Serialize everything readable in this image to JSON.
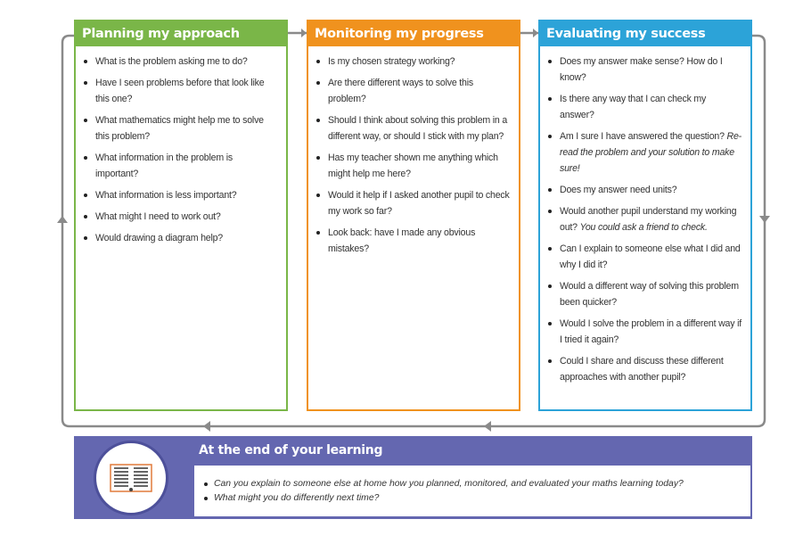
{
  "columns": [
    {
      "title": "Planning my approach",
      "color": "#7ab648",
      "items": [
        {
          "text": "What is the problem asking me to do?"
        },
        {
          "text": "Have I seen problems before that look like this one?"
        },
        {
          "text": "What mathematics might help me to solve this problem?"
        },
        {
          "text": "What information in the problem is important?"
        },
        {
          "text": "What information is less important?"
        },
        {
          "text": "What might I need to work out?"
        },
        {
          "text": "Would drawing a diagram help?"
        }
      ]
    },
    {
      "title": "Monitoring my progress",
      "color": "#f0921e",
      "items": [
        {
          "text": "Is my chosen strategy working?"
        },
        {
          "text": "Are there different ways to solve this problem?"
        },
        {
          "text": "Should I think about solving this problem in a different way, or should I stick with my plan?"
        },
        {
          "text": "Has my teacher shown me anything which might help me here?"
        },
        {
          "text": "Would it help if I asked another pupil to check my work so far?"
        },
        {
          "text": "Look back: have I made any obvious mistakes?"
        }
      ]
    },
    {
      "title": "Evaluating my success",
      "color": "#2ca3d8",
      "items": [
        {
          "text": "Does my answer make sense? How do I know?"
        },
        {
          "text": "Is there any way that I can check my answer?"
        },
        {
          "text": "Am I sure I have answered the question?",
          "italic": "Re-read the problem and your solution to make sure!"
        },
        {
          "text": "Does my answer need units?"
        },
        {
          "text": "Would another pupil understand my working out?",
          "italic": "You could ask a friend to check."
        },
        {
          "text": "Can I explain to someone else what I did and why I did it?"
        },
        {
          "text": "Would a different way of solving this problem been quicker?"
        },
        {
          "text": "Would I solve the problem in a different way if I tried it again?"
        },
        {
          "text": "Could I share and discuss these different approaches with another pupil?"
        }
      ]
    }
  ],
  "bottom": {
    "title": "At the end of your learning",
    "color": "#6467b0",
    "icon": "book-icon",
    "items": [
      "Can you explain to someone else at home how you planned, monitored, and evaluated your maths learning today?",
      "What might you do differently next time?"
    ]
  },
  "loop_color": "#8a8a8a"
}
